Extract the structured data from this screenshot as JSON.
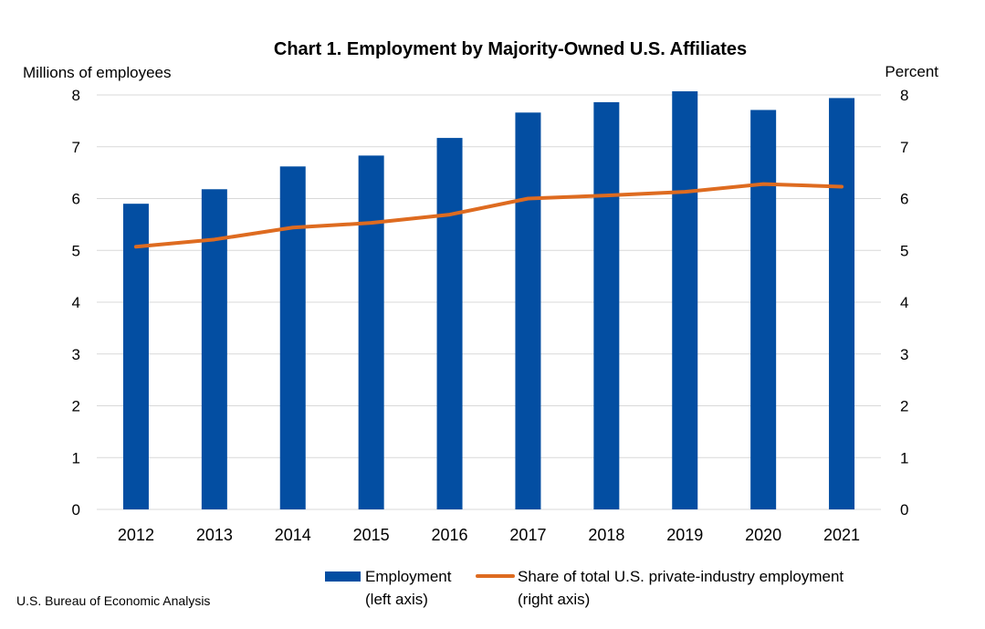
{
  "chart_data": {
    "type": "bar",
    "title": "Chart 1. Employment by Majority-Owned U.S. Affiliates",
    "ylabel_left": "Millions of employees",
    "ylabel_right": "Percent",
    "categories": [
      "2012",
      "2013",
      "2014",
      "2015",
      "2016",
      "2017",
      "2018",
      "2019",
      "2020",
      "2021"
    ],
    "ylim_left": [
      0,
      8
    ],
    "ylim_right": [
      0,
      8
    ],
    "yticks": [
      "0",
      "1",
      "2",
      "3",
      "4",
      "5",
      "6",
      "7",
      "8"
    ],
    "grid": true,
    "legend_position": "bottom",
    "series": [
      {
        "name_lines": [
          "Employment",
          "(left axis)"
        ],
        "type": "bar",
        "axis": "left",
        "color": "#034EA2",
        "values": [
          5.9,
          6.18,
          6.62,
          6.83,
          7.17,
          7.66,
          7.86,
          8.07,
          7.71,
          7.94
        ]
      },
      {
        "name_lines": [
          "Share of total U.S. private-industry employment",
          "(right axis)"
        ],
        "type": "line",
        "axis": "right",
        "color": "#DE6B20",
        "values": [
          5.07,
          5.21,
          5.44,
          5.53,
          5.69,
          6.0,
          6.06,
          6.13,
          6.28,
          6.23
        ]
      }
    ]
  },
  "source": "U.S. Bureau of Economic Analysis"
}
